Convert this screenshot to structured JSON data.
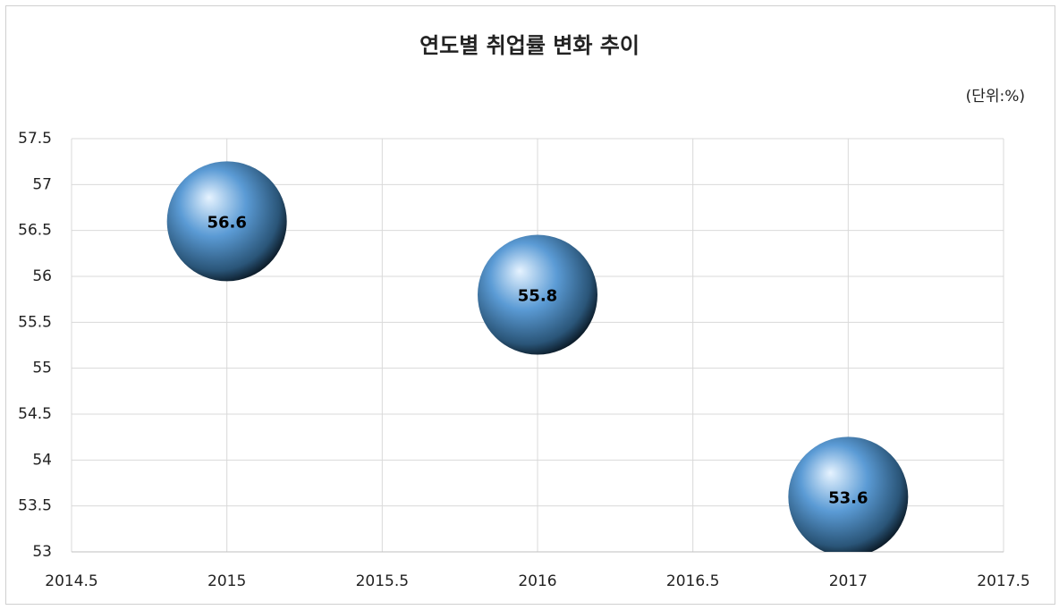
{
  "chart_data": {
    "type": "scatter",
    "title": "연도별 취업률 변화 추이",
    "subtitle": "(단위:%)",
    "x": [
      2015,
      2016,
      2017
    ],
    "values": [
      56.6,
      55.8,
      53.6
    ],
    "color": "#5b9bd5",
    "xlim": [
      2014.5,
      2017.5
    ],
    "xticks": [
      2014.5,
      2015,
      2015.5,
      2016,
      2016.5,
      2017,
      2017.5
    ],
    "ylim": [
      53,
      57.5
    ],
    "yticks": [
      53,
      53.5,
      54,
      54.5,
      55,
      55.5,
      56,
      56.5,
      57,
      57.5
    ],
    "grid": true
  }
}
